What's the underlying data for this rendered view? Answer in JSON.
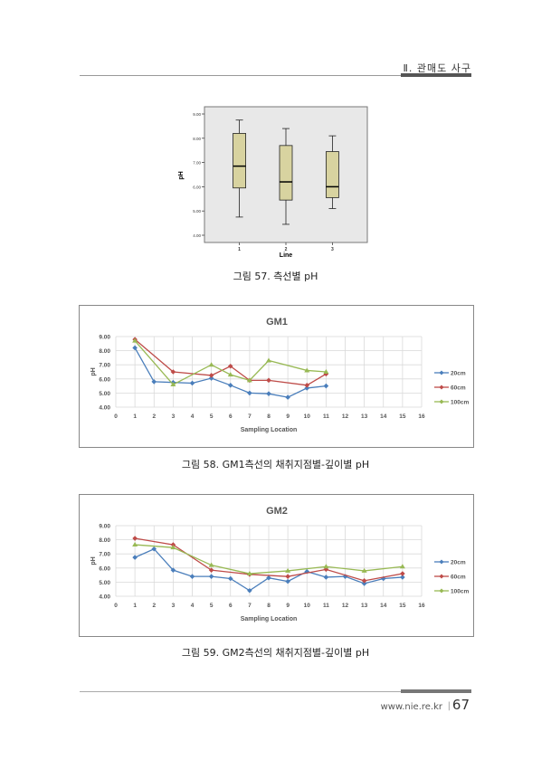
{
  "header": {
    "section": "Ⅱ. 관매도 사구"
  },
  "captions": {
    "fig57": "그림 57. 측선별 pH",
    "fig58": "그림 58. GM1측선의 채취지점별-깊이별 pH",
    "fig59": "그림 59. GM2측선의 채취지점별-깊이별 pH"
  },
  "footer": {
    "url": "www.nie.re.kr",
    "page": "67"
  },
  "colors": {
    "c20": "#4a7ebb",
    "c60": "#be4b48",
    "c100": "#98b954",
    "box": "#d8d3a0"
  },
  "chart_data": [
    {
      "type": "box",
      "xlabel": "Line",
      "ylabel": "pH",
      "categories": [
        "1",
        "2",
        "3"
      ],
      "ylim": [
        4.0,
        9.0
      ],
      "yticks": [
        "4.00",
        "5.00",
        "6.00",
        "7.00",
        "8.00",
        "9.00"
      ],
      "boxes": [
        {
          "min": 4.75,
          "q1": 5.95,
          "median": 6.85,
          "q3": 8.2,
          "max": 8.75
        },
        {
          "min": 4.45,
          "q1": 5.45,
          "median": 6.2,
          "q3": 7.7,
          "max": 8.4
        },
        {
          "min": 5.1,
          "q1": 5.55,
          "median": 6.0,
          "q3": 7.45,
          "max": 8.1
        }
      ]
    },
    {
      "type": "line",
      "title": "GM1",
      "xlabel": "Sampling Location",
      "ylabel": "pH",
      "xlim": [
        0,
        16
      ],
      "ylim": [
        4.0,
        9.0
      ],
      "xticks": [
        "0",
        "1",
        "2",
        "3",
        "4",
        "5",
        "6",
        "7",
        "8",
        "9",
        "10",
        "11",
        "12",
        "13",
        "14",
        "15",
        "16"
      ],
      "yticks": [
        "4.00",
        "5.00",
        "6.00",
        "7.00",
        "8.00",
        "9.00"
      ],
      "legend": "right",
      "series": [
        {
          "name": "20cm",
          "x": [
            1,
            2,
            3,
            4,
            5,
            6,
            7,
            8,
            9,
            10,
            11
          ],
          "values": [
            8.2,
            5.8,
            5.75,
            5.7,
            6.05,
            5.55,
            5.0,
            4.95,
            4.7,
            5.35,
            5.5
          ]
        },
        {
          "name": "60cm",
          "x": [
            1,
            3,
            5,
            6,
            7,
            8,
            10,
            11
          ],
          "values": [
            8.8,
            6.5,
            6.25,
            6.9,
            5.9,
            5.9,
            5.55,
            6.35
          ]
        },
        {
          "name": "100cm",
          "x": [
            1,
            3,
            5,
            6,
            7,
            8,
            10,
            11
          ],
          "values": [
            8.7,
            5.6,
            7.0,
            6.3,
            5.9,
            7.3,
            6.6,
            6.5
          ]
        }
      ]
    },
    {
      "type": "line",
      "title": "GM2",
      "xlabel": "Sampling Location",
      "ylabel": "pH",
      "xlim": [
        0,
        16
      ],
      "ylim": [
        4.0,
        9.0
      ],
      "xticks": [
        "0",
        "1",
        "2",
        "3",
        "4",
        "5",
        "6",
        "7",
        "8",
        "9",
        "10",
        "11",
        "12",
        "13",
        "14",
        "15",
        "16"
      ],
      "yticks": [
        "4.00",
        "5.00",
        "6.00",
        "7.00",
        "8.00",
        "9.00"
      ],
      "legend": "right",
      "series": [
        {
          "name": "20cm",
          "x": [
            1,
            2,
            3,
            4,
            5,
            6,
            7,
            8,
            9,
            10,
            11,
            12,
            13,
            14,
            15
          ],
          "values": [
            6.75,
            7.35,
            5.85,
            5.4,
            5.4,
            5.25,
            4.4,
            5.3,
            5.05,
            5.75,
            5.35,
            5.4,
            4.9,
            5.25,
            5.35
          ]
        },
        {
          "name": "60cm",
          "x": [
            1,
            3,
            5,
            7,
            9,
            11,
            13,
            15
          ],
          "values": [
            8.1,
            7.65,
            5.85,
            5.55,
            5.4,
            5.9,
            5.1,
            5.6
          ]
        },
        {
          "name": "100cm",
          "x": [
            1,
            3,
            5,
            7,
            9,
            11,
            13,
            15
          ],
          "values": [
            7.65,
            7.45,
            6.2,
            5.6,
            5.8,
            6.1,
            5.8,
            6.1
          ]
        }
      ]
    }
  ]
}
